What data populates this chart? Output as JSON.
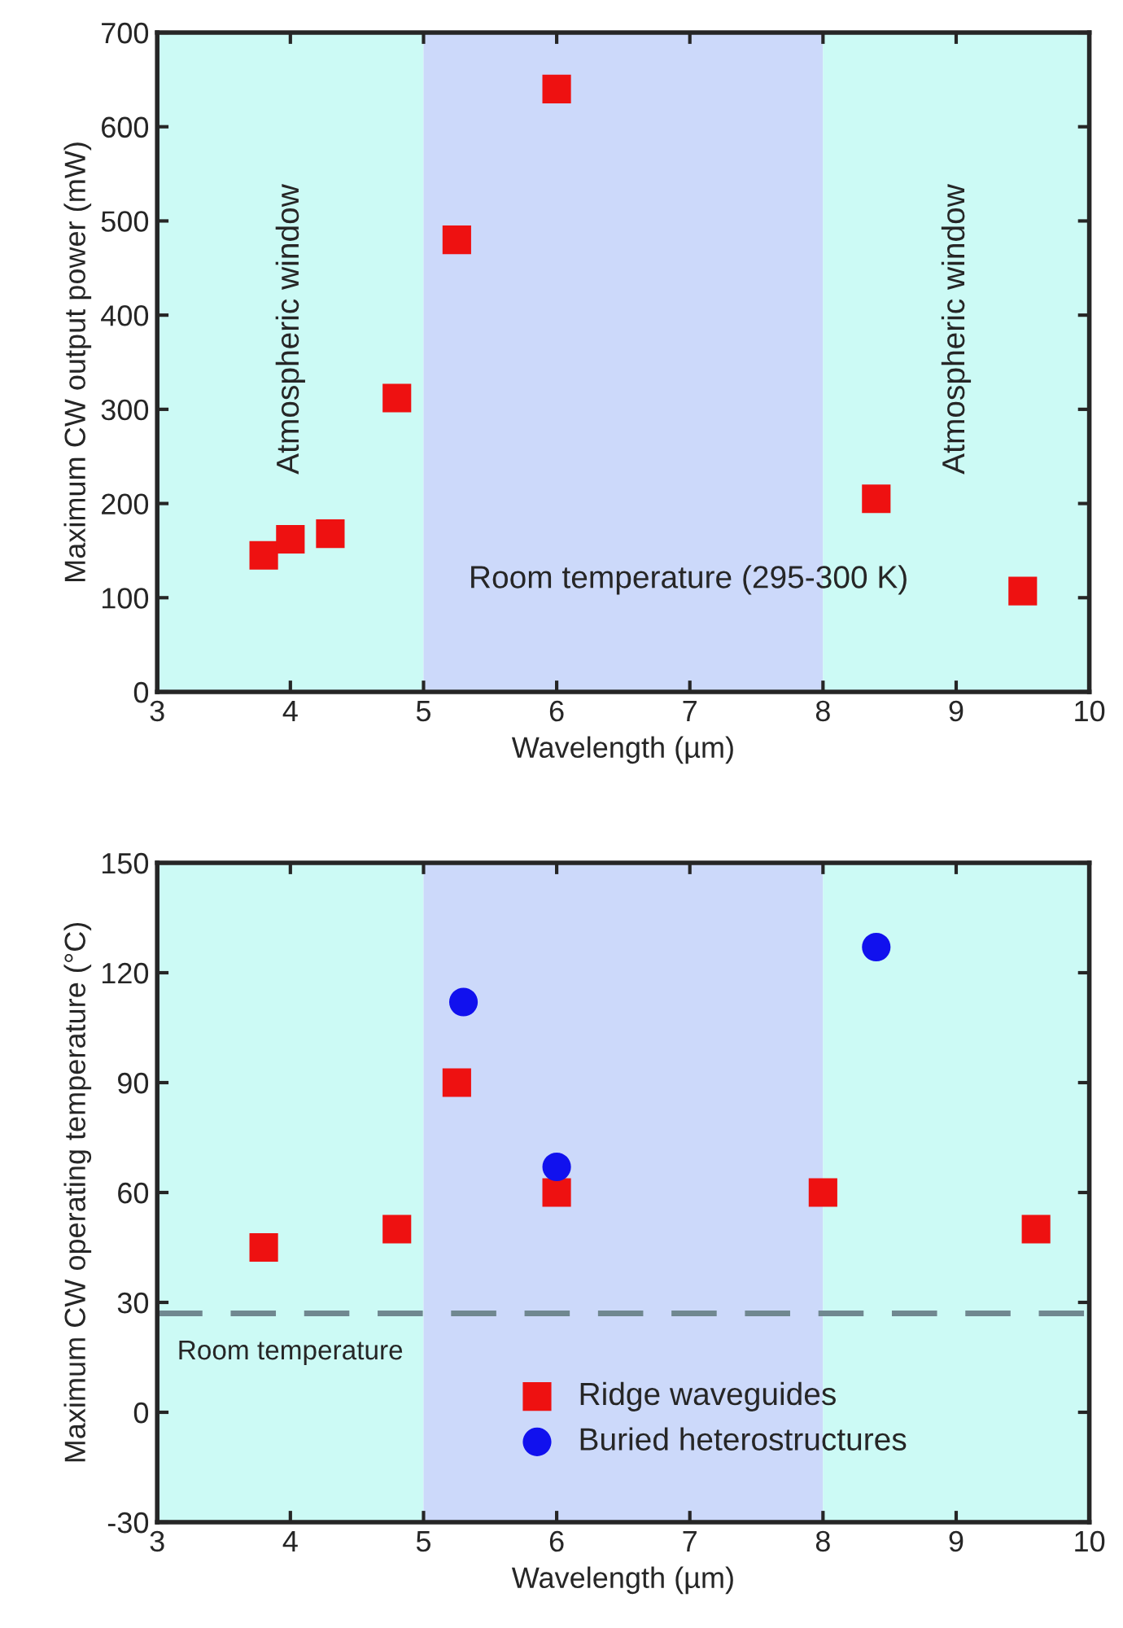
{
  "chart_data": [
    {
      "type": "scatter",
      "xlabel": "Wavelength (µm)",
      "ylabel": "Maximum CW output power (mW)",
      "xlim": [
        3,
        10
      ],
      "xticks": [
        3,
        4,
        5,
        6,
        7,
        8,
        9,
        10
      ],
      "ylim": [
        0,
        700
      ],
      "yticks": [
        0,
        100,
        200,
        300,
        400,
        500,
        600,
        700
      ],
      "grid": false,
      "legend": false,
      "marker": "square",
      "bands": [
        {
          "axis": "x",
          "from": 3,
          "to": 5,
          "label": "Atmospheric window",
          "color": "#ccfaf5"
        },
        {
          "axis": "x",
          "from": 5,
          "to": 8,
          "color": "#ccd9fa"
        },
        {
          "axis": "x",
          "from": 8,
          "to": 10,
          "label": "Atmospheric window",
          "color": "#ccfaf5"
        }
      ],
      "annotations": [
        "Room temperature (295-300 K)"
      ],
      "series": [
        {
          "color": "#ee1111",
          "x": [
            3.8,
            4.0,
            4.3,
            4.8,
            5.25,
            6.0,
            8.4,
            9.5
          ],
          "values": [
            145,
            162,
            168,
            312,
            480,
            640,
            205,
            107
          ]
        }
      ]
    },
    {
      "type": "scatter",
      "xlabel": "Wavelength (µm)",
      "ylabel": "Maximum CW operating temperature (°C)",
      "xlim": [
        3,
        10
      ],
      "xticks": [
        3,
        4,
        5,
        6,
        7,
        8,
        9,
        10
      ],
      "ylim": [
        -30,
        150
      ],
      "yticks": [
        -30,
        0,
        30,
        60,
        90,
        120,
        150
      ],
      "grid": false,
      "legend": "bottom right",
      "bands": [
        {
          "axis": "x",
          "from": 3,
          "to": 5,
          "color": "#ccfaf5"
        },
        {
          "axis": "x",
          "from": 5,
          "to": 8,
          "color": "#ccd9fa"
        },
        {
          "axis": "x",
          "from": 8,
          "to": 10,
          "color": "#ccfaf5"
        }
      ],
      "ref_lines": [
        {
          "axis": "y",
          "value": 27,
          "label": "Room temperature",
          "color": "#708890",
          "line_style": "dashed"
        }
      ],
      "series": [
        {
          "name": "Ridge waveguides",
          "color": "#ee1111",
          "marker": "square",
          "x": [
            3.8,
            4.8,
            5.25,
            6.0,
            8.0,
            9.6
          ],
          "values": [
            45,
            50,
            90,
            60,
            60,
            50
          ]
        },
        {
          "name": "Buried heterostructures",
          "color": "#1111ee",
          "marker": "circle",
          "x": [
            5.3,
            6.0,
            8.4
          ],
          "values": [
            112,
            67,
            127
          ]
        }
      ]
    }
  ]
}
